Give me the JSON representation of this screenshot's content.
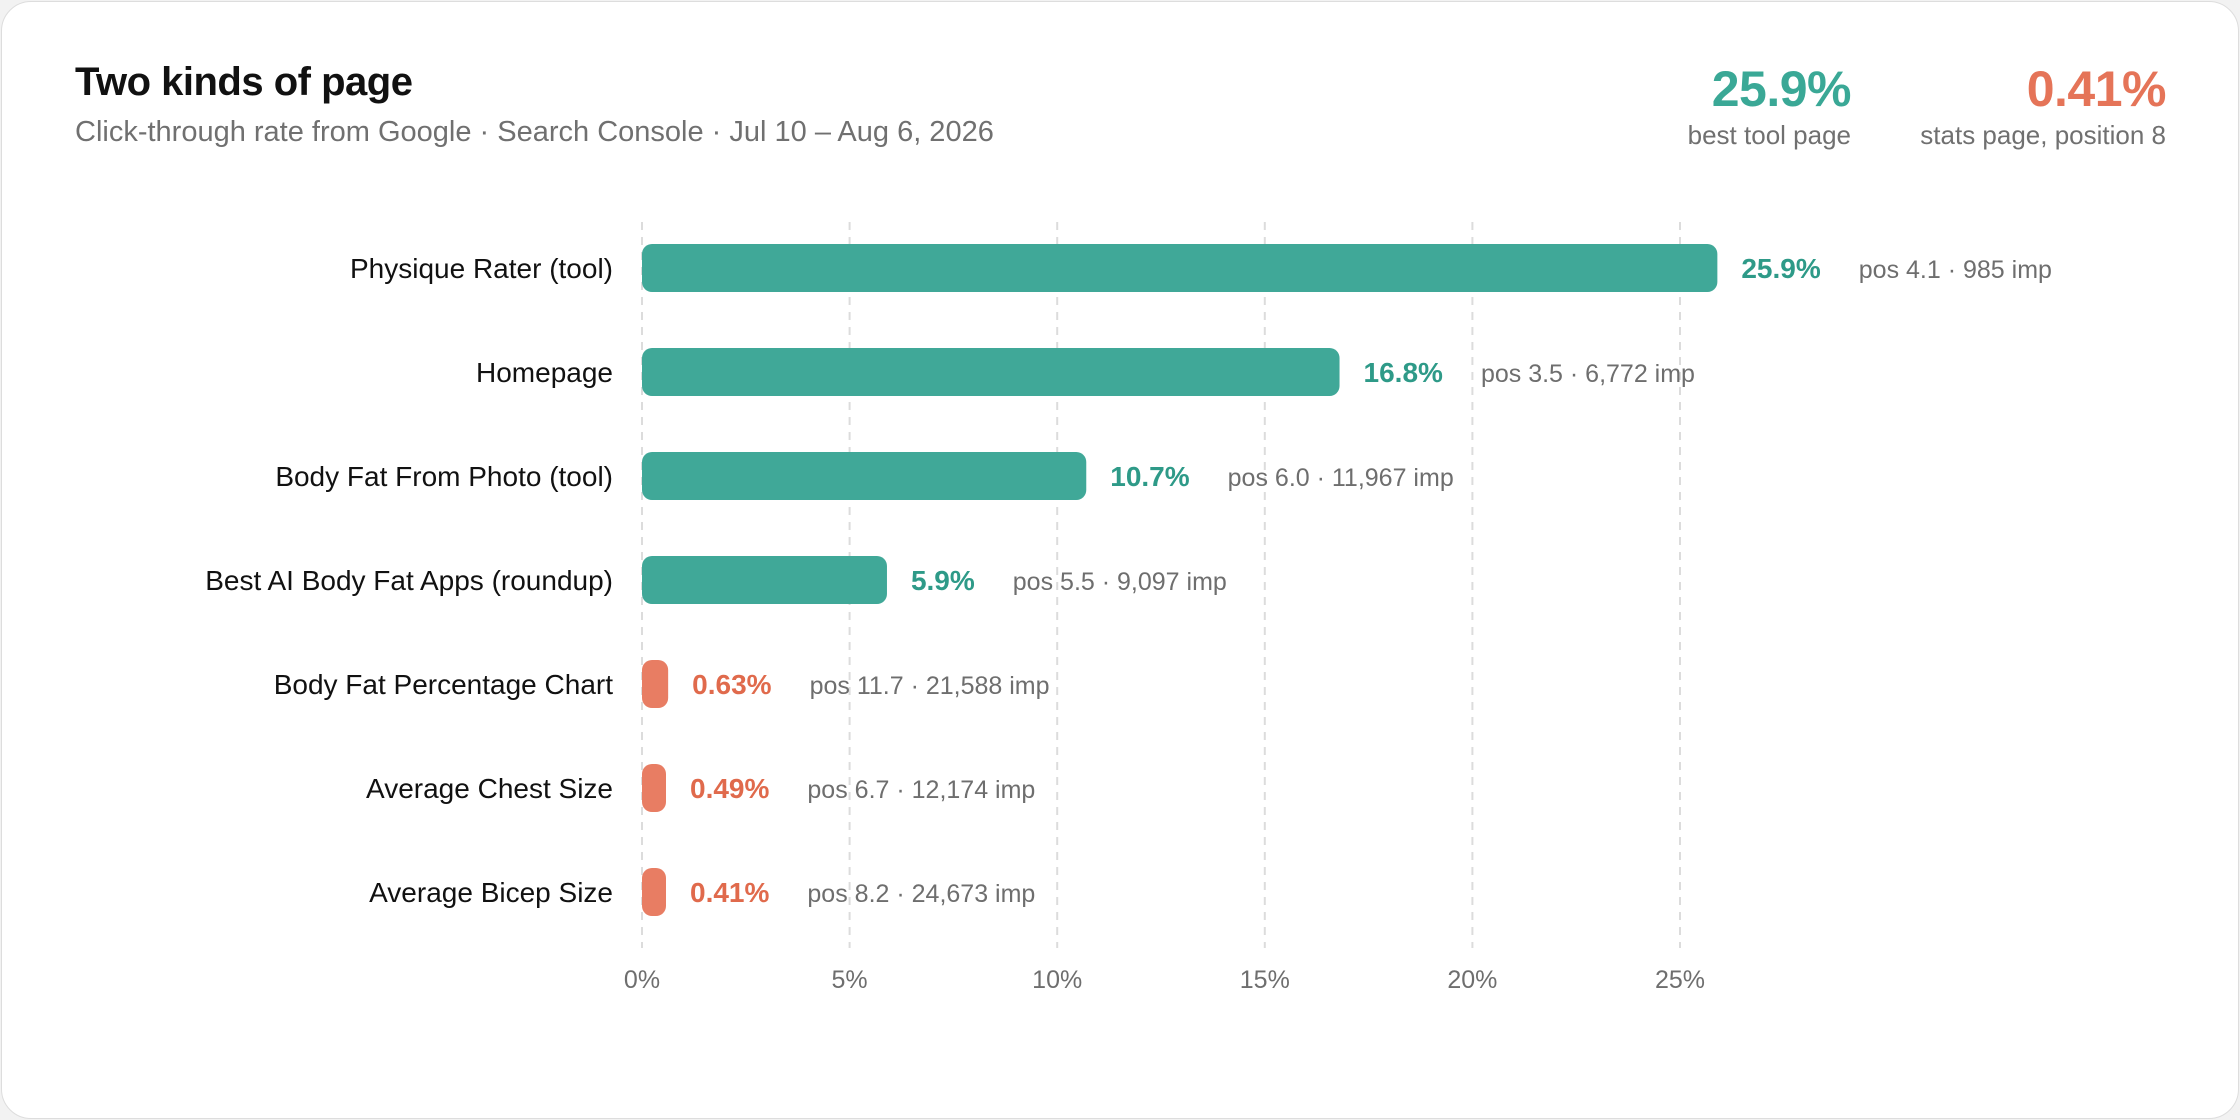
{
  "header": {
    "title": "Two kinds of page",
    "subtitle": "Click-through rate from Google · Search Console · Jul 10 – Aug 6, 2026"
  },
  "stats": [
    {
      "value": "25.9%",
      "label": "best tool page",
      "color": "#3aa896"
    },
    {
      "value": "0.41%",
      "label": "stats page, position 8",
      "color": "#e57458"
    }
  ],
  "colors": {
    "tool": "#40a898",
    "tool_text": "#2e9a88",
    "stats": "#e87d63",
    "stats_text": "#e06a4c",
    "meta_text": "#6e6e6e",
    "grid": "#dcdcdc"
  },
  "chart_data": {
    "type": "bar",
    "orientation": "horizontal",
    "title": "Two kinds of page",
    "subtitle": "Click-through rate from Google · Search Console · Jul 10 – Aug 6, 2026",
    "xlabel": "",
    "ylabel": "",
    "xlim": [
      0,
      25
    ],
    "x_ticks": [
      "0%",
      "5%",
      "10%",
      "15%",
      "20%",
      "25%"
    ],
    "grid": "vertical dashed",
    "categories": [
      "Physique Rater (tool)",
      "Homepage",
      "Body Fat From Photo (tool)",
      "Best AI Body Fat Apps (roundup)",
      "Body Fat Percentage Chart",
      "Average Chest Size",
      "Average Bicep Size"
    ],
    "values": [
      25.9,
      16.8,
      10.7,
      5.9,
      0.63,
      0.49,
      0.41
    ],
    "value_labels": [
      "25.9%",
      "16.8%",
      "10.7%",
      "5.9%",
      "0.63%",
      "0.49%",
      "0.41%"
    ],
    "meta_labels": [
      "pos 4.1 · 985 imp",
      "pos 3.5 · 6,772 imp",
      "pos 6.0 · 11,967 imp",
      "pos 5.5 · 9,097 imp",
      "pos 11.7 · 21,588 imp",
      "pos 6.7 · 12,174 imp",
      "pos 8.2 · 24,673 imp"
    ],
    "groups": [
      "tool",
      "tool",
      "tool",
      "tool",
      "stats",
      "stats",
      "stats"
    ]
  }
}
